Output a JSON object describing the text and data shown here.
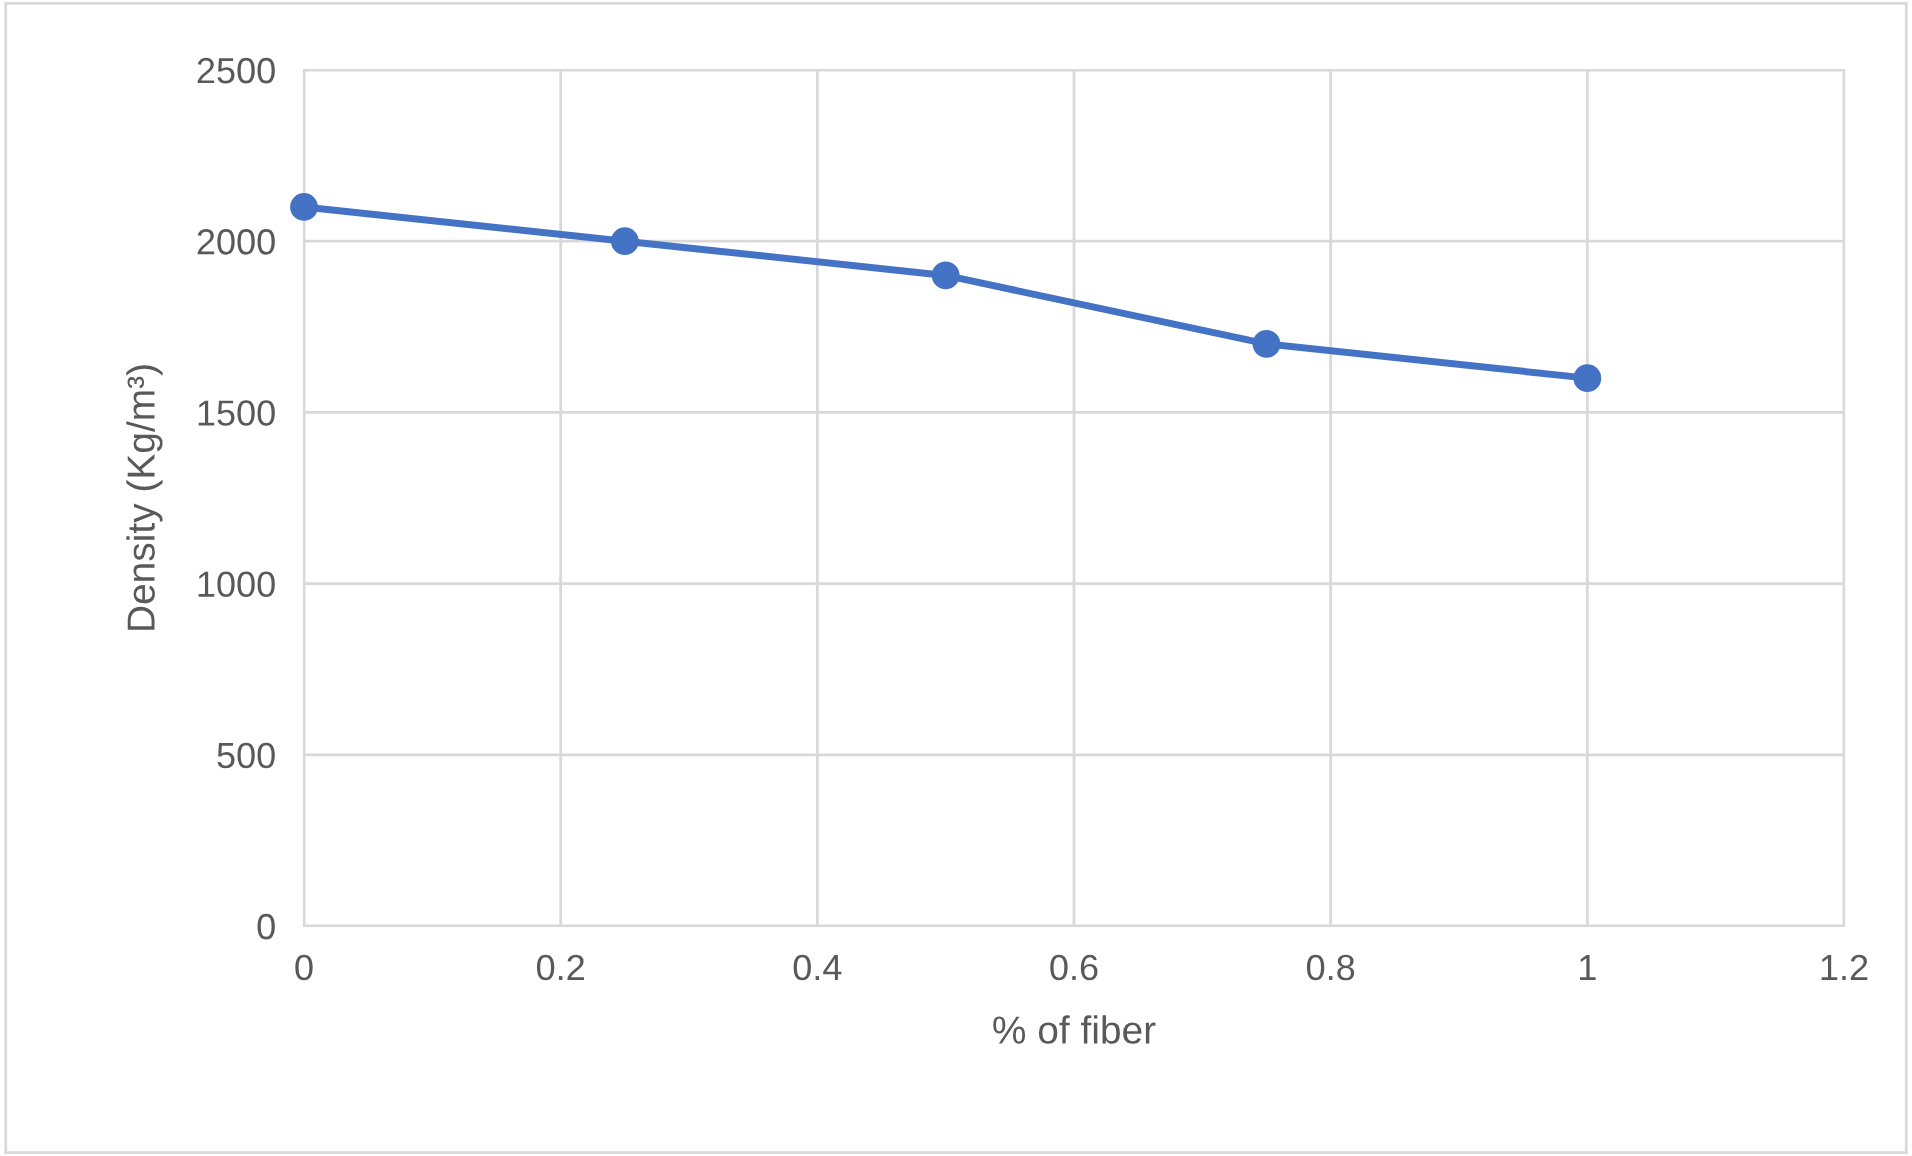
{
  "chart_data": {
    "type": "line",
    "xlabel": "% of fiber",
    "ylabel": "Density (Kg/m³)",
    "x": [
      0,
      0.25,
      0.5,
      0.75,
      1
    ],
    "series": [
      {
        "color": "#4472c4",
        "values": [
          2100,
          2000,
          1900,
          1700,
          1600
        ]
      }
    ],
    "xlim": [
      0,
      1.2
    ],
    "xticks": [
      0,
      0.2,
      0.4,
      0.6,
      0.8,
      1,
      1.2
    ],
    "ylim": [
      0,
      2500
    ],
    "yticks": [
      0,
      500,
      1000,
      1500,
      2000,
      2500
    ],
    "grid": true,
    "marker": "circle",
    "line_style": "solid"
  }
}
